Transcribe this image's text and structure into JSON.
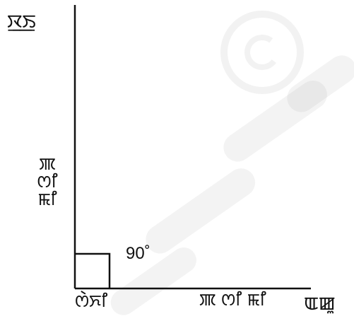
{
  "diagram": {
    "y_axis_label": "ꯋ꯭ꯏ",
    "x_axis_label": "ꯑꯀꯨ",
    "origin_label": "ꯁꯥꯈꯤ",
    "x_side_label": "ꯄ ꯁꯤ ꯃꯤ",
    "y_side_label": "ꯄ ꯁꯤ ꯃꯤ",
    "angle_label": "90˚"
  },
  "colors": {
    "line": "#111111",
    "background": "#ffffff",
    "watermark": "#d6d6d6"
  }
}
